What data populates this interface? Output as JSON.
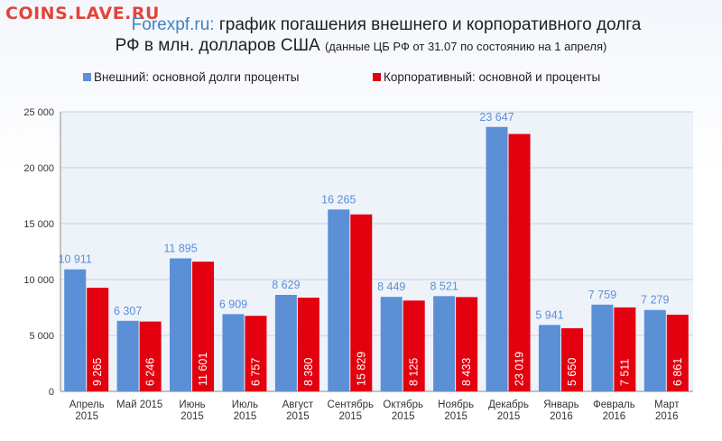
{
  "watermark": "COINS.LAVE.RU",
  "title": {
    "source": "Forexpf.ru:",
    "line1": "график погашения внешнего и корпоративного долга",
    "line2_main": "РФ в млн. долларов США",
    "line2_note": "(данные ЦБ РФ от 31.07 по состоянию на 1 апреля)"
  },
  "colors": {
    "external": "#5b8fd6",
    "corporate": "#e3000f",
    "grid": "#c8d2e0",
    "plot_bg": "#eef3fa",
    "ext_label": "#5b8fd6",
    "corp_label": "#ffffff"
  },
  "chart_data": {
    "type": "bar",
    "title": "Forexpf.ru: график погашения внешнего и корпоративного долга РФ в млн. долларов США (данные ЦБ РФ от 31.07 по состоянию на 1 апреля)",
    "categories": [
      [
        "Апрель",
        "2015"
      ],
      [
        "Май 2015"
      ],
      [
        "Июнь",
        "2015"
      ],
      [
        "Июль",
        "2015"
      ],
      [
        "Август",
        "2015"
      ],
      [
        "Сентябрь",
        "2015"
      ],
      [
        "Октябрь",
        "2015"
      ],
      [
        "Ноябрь",
        "2015"
      ],
      [
        "Декабрь",
        "2015"
      ],
      [
        "Январь",
        "2016"
      ],
      [
        "Февраль",
        "2016"
      ],
      [
        "Март",
        "2016"
      ]
    ],
    "series": [
      {
        "name": "Внешний: основной долги проценты",
        "values": [
          10911,
          6307,
          11895,
          6909,
          8629,
          16265,
          8449,
          8521,
          23647,
          5941,
          7759,
          7279
        ],
        "labels": [
          "10 911",
          "6 307",
          "11 895",
          "6 909",
          "8 629",
          "16 265",
          "8 449",
          "8 521",
          "23 647",
          "5 941",
          "7 759",
          "7 279"
        ]
      },
      {
        "name": "Корпоративный: основной и проценты",
        "values": [
          9265,
          6246,
          11601,
          6757,
          8380,
          15829,
          8125,
          8433,
          23019,
          5650,
          7511,
          6861
        ],
        "labels": [
          "9 265",
          "6 246",
          "11 601",
          "6 757",
          "8 380",
          "15 829",
          "8 125",
          "8 433",
          "23 019",
          "5 650",
          "7 511",
          "6 861"
        ]
      }
    ],
    "ylim": [
      0,
      25000
    ],
    "yticks": [
      0,
      5000,
      10000,
      15000,
      20000,
      25000
    ],
    "ytick_labels": [
      "0",
      "5 000",
      "10 000",
      "15 000",
      "20 000",
      "25 000"
    ],
    "grid": true,
    "legend_position": "top"
  }
}
